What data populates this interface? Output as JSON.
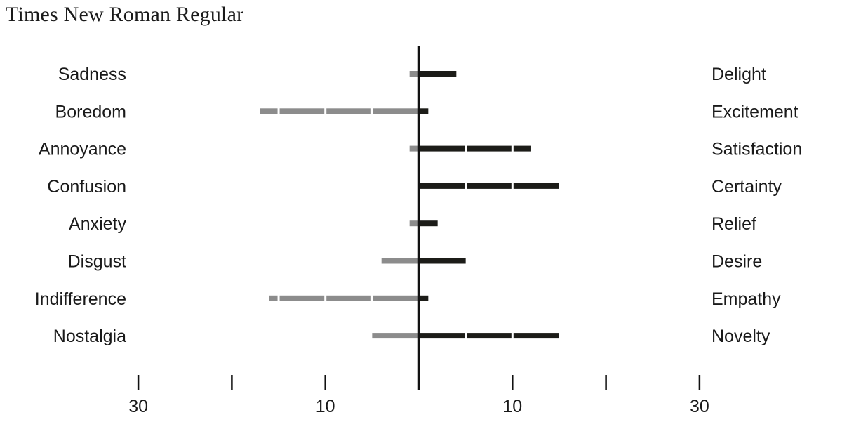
{
  "chart_data": {
    "type": "bar",
    "subtype": "diverging",
    "title": "Times New Roman Regular",
    "xlim": [
      -30,
      30
    ],
    "tick_values": [
      -30,
      -20,
      -10,
      0,
      10,
      20,
      30
    ],
    "tick_labels": [
      "30",
      "",
      "10",
      "",
      "10",
      "",
      "30"
    ],
    "categories_left": [
      "Sadness",
      "Boredom",
      "Annoyance",
      "Confusion",
      "Anxiety",
      "Disgust",
      "Indifference",
      "Nostalgia"
    ],
    "categories_right": [
      "Delight",
      "Excitement",
      "Satisfaction",
      "Certainty",
      "Relief",
      "Desire",
      "Empathy",
      "Novelty"
    ],
    "series": [
      {
        "side": "left",
        "color": "#8c8c8c",
        "values": [
          1,
          17,
          1,
          0,
          1,
          4,
          16,
          5
        ]
      },
      {
        "side": "right",
        "color": "#1c1c18",
        "values": [
          4,
          1,
          12,
          15,
          2,
          5,
          1,
          15
        ]
      }
    ],
    "segment_unit": 5,
    "center_line": true,
    "grid": false
  }
}
